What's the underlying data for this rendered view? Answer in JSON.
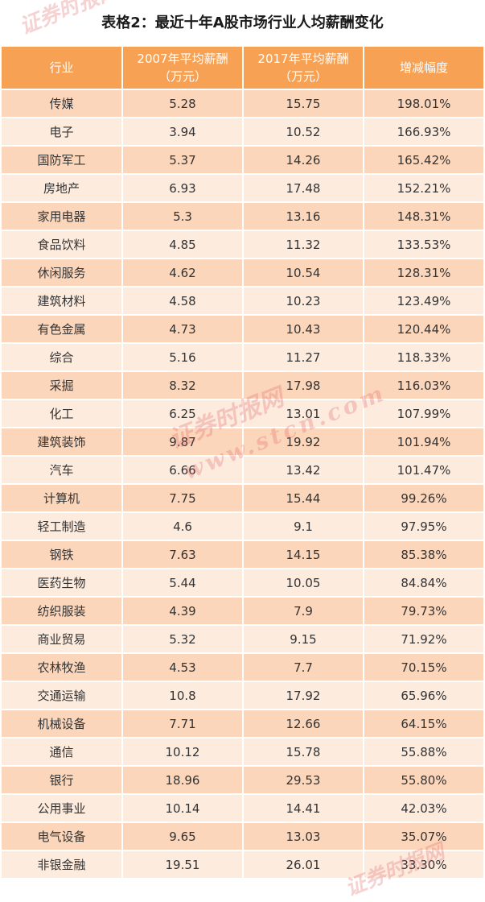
{
  "title": "表格2：最近十年A股市场行业人均薪酬变化",
  "table": {
    "headers": [
      "行业",
      "2007年平均薪酬\n（万元）",
      "2017年平均薪酬\n（万元）",
      "增减幅度"
    ],
    "rows": [
      [
        "传媒",
        "5.28",
        "15.75",
        "198.01%"
      ],
      [
        "电子",
        "3.94",
        "10.52",
        "166.93%"
      ],
      [
        "国防军工",
        "5.37",
        "14.26",
        "165.42%"
      ],
      [
        "房地产",
        "6.93",
        "17.48",
        "152.21%"
      ],
      [
        "家用电器",
        "5.3",
        "13.16",
        "148.31%"
      ],
      [
        "食品饮料",
        "4.85",
        "11.32",
        "133.53%"
      ],
      [
        "休闲服务",
        "4.62",
        "10.54",
        "128.31%"
      ],
      [
        "建筑材料",
        "4.58",
        "10.23",
        "123.49%"
      ],
      [
        "有色金属",
        "4.73",
        "10.43",
        "120.44%"
      ],
      [
        "综合",
        "5.16",
        "11.27",
        "118.33%"
      ],
      [
        "采掘",
        "8.32",
        "17.98",
        "116.03%"
      ],
      [
        "化工",
        "6.25",
        "13.01",
        "107.99%"
      ],
      [
        "建筑装饰",
        "9.87",
        "19.92",
        "101.94%"
      ],
      [
        "汽车",
        "6.66",
        "13.42",
        "101.47%"
      ],
      [
        "计算机",
        "7.75",
        "15.44",
        "99.26%"
      ],
      [
        "轻工制造",
        "4.6",
        "9.1",
        "97.95%"
      ],
      [
        "钢铁",
        "7.63",
        "14.15",
        "85.38%"
      ],
      [
        "医药生物",
        "5.44",
        "10.05",
        "84.84%"
      ],
      [
        "纺织服装",
        "4.39",
        "7.9",
        "79.73%"
      ],
      [
        "商业贸易",
        "5.32",
        "9.15",
        "71.92%"
      ],
      [
        "农林牧渔",
        "4.53",
        "7.7",
        "70.15%"
      ],
      [
        "交通运输",
        "10.8",
        "17.92",
        "65.96%"
      ],
      [
        "机械设备",
        "7.71",
        "12.66",
        "64.15%"
      ],
      [
        "通信",
        "10.12",
        "15.78",
        "55.88%"
      ],
      [
        "银行",
        "18.96",
        "29.53",
        "55.80%"
      ],
      [
        "公用事业",
        "10.14",
        "14.41",
        "42.03%"
      ],
      [
        "电气设备",
        "9.65",
        "13.03",
        "35.07%"
      ],
      [
        "非银金融",
        "19.51",
        "26.01",
        "33.30%"
      ]
    ]
  },
  "watermark": {
    "brand": "证券时报网",
    "url": "www.stcn.com",
    "color": "#e05c5c"
  }
}
